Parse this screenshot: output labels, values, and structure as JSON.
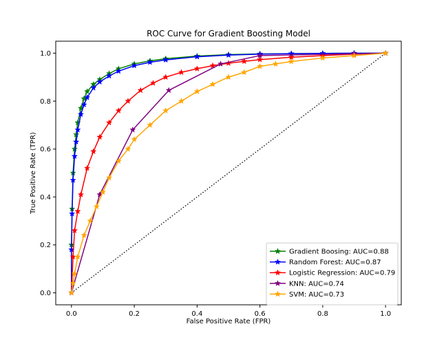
{
  "chart_data": {
    "type": "line",
    "title": "ROC Curve for Gradient Boosting Model",
    "xlabel": "False Positive Rate (FPR)",
    "ylabel": "True Positive Rate (TPR)",
    "xlim": [
      -0.05,
      1.05
    ],
    "ylim": [
      -0.05,
      1.05
    ],
    "x_ticks": [
      "0.0",
      "0.2",
      "0.4",
      "0.6",
      "0.8",
      "1.0"
    ],
    "y_ticks": [
      "0.0",
      "0.2",
      "0.4",
      "0.6",
      "0.8",
      "1.0"
    ],
    "grid": false,
    "legend_position": "lower-right",
    "marker": "star",
    "series": [
      {
        "name": "Gradient Boosing: AUC=0.88",
        "color": "#008000",
        "x": [
          0.0,
          0.0,
          0.002,
          0.005,
          0.01,
          0.015,
          0.02,
          0.03,
          0.04,
          0.05,
          0.07,
          0.09,
          0.12,
          0.15,
          0.2,
          0.25,
          0.3,
          0.4,
          0.5,
          0.6,
          0.7,
          0.8,
          0.9,
          1.0
        ],
        "y": [
          0.0,
          0.2,
          0.35,
          0.5,
          0.6,
          0.66,
          0.71,
          0.77,
          0.81,
          0.84,
          0.87,
          0.89,
          0.915,
          0.935,
          0.955,
          0.968,
          0.977,
          0.988,
          0.994,
          0.997,
          0.998,
          0.999,
          1.0,
          1.0
        ]
      },
      {
        "name": "Random Forest: AUC=0.87",
        "color": "#0000ff",
        "x": [
          0.0,
          0.0,
          0.002,
          0.005,
          0.01,
          0.015,
          0.02,
          0.03,
          0.04,
          0.05,
          0.07,
          0.09,
          0.12,
          0.15,
          0.2,
          0.25,
          0.3,
          0.4,
          0.5,
          0.6,
          0.7,
          0.8,
          0.9,
          1.0
        ],
        "y": [
          0.0,
          0.18,
          0.33,
          0.47,
          0.57,
          0.63,
          0.68,
          0.745,
          0.785,
          0.815,
          0.855,
          0.88,
          0.905,
          0.925,
          0.948,
          0.962,
          0.972,
          0.985,
          0.992,
          0.996,
          0.998,
          0.999,
          1.0,
          1.0
        ]
      },
      {
        "name": "Logistic Regression: AUC=0.79",
        "color": "#ff0000",
        "x": [
          0.0,
          0.005,
          0.01,
          0.02,
          0.03,
          0.05,
          0.07,
          0.09,
          0.12,
          0.15,
          0.18,
          0.22,
          0.26,
          0.3,
          0.35,
          0.4,
          0.45,
          0.5,
          0.55,
          0.6,
          0.7,
          0.8,
          0.9,
          1.0
        ],
        "y": [
          0.0,
          0.15,
          0.26,
          0.34,
          0.41,
          0.52,
          0.59,
          0.65,
          0.71,
          0.76,
          0.8,
          0.845,
          0.875,
          0.9,
          0.92,
          0.935,
          0.948,
          0.958,
          0.966,
          0.973,
          0.983,
          0.99,
          0.996,
          1.0
        ]
      },
      {
        "name": "KNN: AUC=0.74",
        "color": "#800080",
        "x": [
          0.0,
          0.09,
          0.195,
          0.31,
          0.475,
          0.6,
          1.0
        ],
        "y": [
          0.0,
          0.41,
          0.68,
          0.845,
          0.955,
          0.99,
          1.0
        ]
      },
      {
        "name": "SVM: AUC=0.73",
        "color": "#ffa500",
        "x": [
          0.0,
          0.005,
          0.01,
          0.02,
          0.04,
          0.06,
          0.08,
          0.1,
          0.12,
          0.15,
          0.18,
          0.2,
          0.25,
          0.3,
          0.35,
          0.4,
          0.45,
          0.5,
          0.55,
          0.6,
          0.65,
          0.7,
          0.8,
          0.9,
          1.0
        ],
        "y": [
          0.0,
          0.04,
          0.08,
          0.15,
          0.24,
          0.3,
          0.36,
          0.42,
          0.48,
          0.55,
          0.6,
          0.64,
          0.7,
          0.76,
          0.8,
          0.84,
          0.87,
          0.9,
          0.92,
          0.945,
          0.955,
          0.965,
          0.98,
          0.99,
          1.0
        ]
      }
    ],
    "reference_line": {
      "x": [
        0.0,
        1.0
      ],
      "y": [
        0.0,
        1.0
      ],
      "color": "#000000",
      "style": "dotted"
    }
  }
}
